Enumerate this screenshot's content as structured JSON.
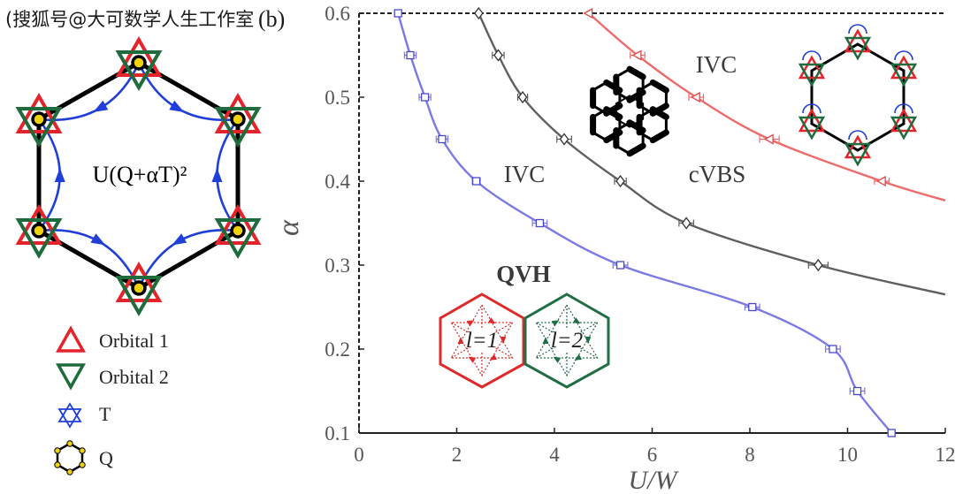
{
  "watermark": "(搜狐号@大可数学人生工作室",
  "panel_b_label": "(b)",
  "left_panel": {
    "formula": "U(Q+αT)²",
    "legend": [
      {
        "label": "Orbital 1",
        "icon": "red-triangle-up-icon"
      },
      {
        "label": "Orbital 2",
        "icon": "green-triangle-down-icon"
      },
      {
        "label": "T",
        "icon": "blue-star-icon"
      },
      {
        "label": "Q",
        "icon": "hexagon-icon"
      }
    ]
  },
  "colors": {
    "red": "#e5232a",
    "green": "#1e6b3c",
    "blue": "#1f3fd8",
    "yellow": "#f0d20a",
    "curve_blue": "#7b79e6",
    "curve_gray": "#5f5f5f",
    "curve_red": "#ee6b6b",
    "inset_red": "#e02a2a",
    "inset_green": "#1f6e46"
  },
  "chart_data": {
    "type": "line",
    "xlabel": "U/W",
    "ylabel": "α",
    "xlim": [
      0,
      12
    ],
    "ylim": [
      0.1,
      0.6
    ],
    "xticks": [
      0,
      2,
      4,
      6,
      8,
      10,
      12
    ],
    "yticks": [
      0.1,
      0.2,
      0.3,
      0.4,
      0.5,
      0.6
    ],
    "series": [
      {
        "name": "QVH–IVC boundary",
        "color": "#7b79e6",
        "marker": "square",
        "points": [
          [
            0.8,
            0.6
          ],
          [
            1.05,
            0.55
          ],
          [
            1.35,
            0.5
          ],
          [
            1.7,
            0.45
          ],
          [
            2.4,
            0.4
          ],
          [
            3.7,
            0.35
          ],
          [
            5.35,
            0.3
          ],
          [
            8.05,
            0.25
          ],
          [
            9.7,
            0.2
          ],
          [
            10.2,
            0.15
          ],
          [
            10.9,
            0.1
          ]
        ],
        "xerr": [
          0,
          0.12,
          0.12,
          0.12,
          0.08,
          0.15,
          0.15,
          0.15,
          0.15,
          0.15,
          0
        ]
      },
      {
        "name": "IVC–cVBS boundary",
        "color": "#5f5f5f",
        "marker": "diamond",
        "points": [
          [
            2.45,
            0.6
          ],
          [
            2.85,
            0.55
          ],
          [
            3.35,
            0.5
          ],
          [
            4.2,
            0.45
          ],
          [
            5.35,
            0.4
          ],
          [
            6.7,
            0.35
          ],
          [
            9.4,
            0.3
          ]
        ],
        "xerr": [
          0,
          0.12,
          0.1,
          0.15,
          0.12,
          0.15,
          0.2
        ]
      },
      {
        "name": "cVBS–IVC boundary",
        "color": "#ee6b6b",
        "marker": "triangle-left",
        "points": [
          [
            4.7,
            0.6
          ],
          [
            5.7,
            0.55
          ],
          [
            6.9,
            0.5
          ],
          [
            8.4,
            0.45
          ],
          [
            10.7,
            0.4
          ]
        ],
        "xerr": [
          0,
          0.15,
          0.15,
          0.2,
          0.15
        ]
      }
    ],
    "regions": [
      {
        "label": "QVH"
      },
      {
        "label": "IVC"
      },
      {
        "label": "cVBS"
      },
      {
        "label": "IVC"
      }
    ],
    "inset_labels": [
      "l=1",
      "l=2"
    ]
  }
}
